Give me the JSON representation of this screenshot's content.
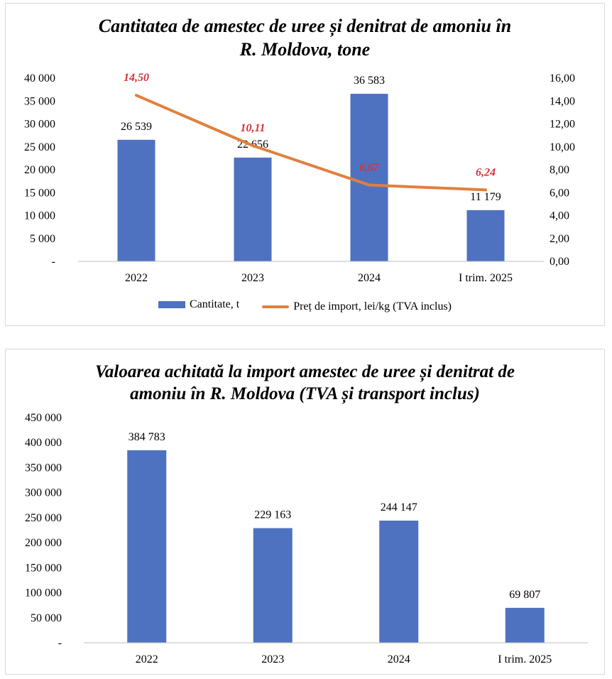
{
  "colors": {
    "bar": "#4e72c0",
    "line": "#e0803e",
    "line_label": "#d6343a",
    "axis": "#bfbfbf"
  },
  "chart_data": [
    {
      "type": "bar+line",
      "title": "Cantitatea de amestec de uree și denitrat de amoniu în R. Moldova, tone",
      "title_lines": [
        "Cantitatea de amestec de uree și denitrat de amoniu în",
        "R. Moldova, tone"
      ],
      "categories": [
        "2022",
        "2023",
        "2024",
        "I trim. 2025"
      ],
      "series": [
        {
          "name": "Cantitate, t",
          "type": "bar",
          "axis": "left",
          "values": [
            26539,
            22656,
            36583,
            11179
          ],
          "labels": [
            "26 539",
            "22 656",
            "36 583",
            "11 179"
          ]
        },
        {
          "name": "Preț de import, lei/kg (TVA inclus)",
          "type": "line",
          "axis": "right",
          "values": [
            14.5,
            10.11,
            6.67,
            6.24
          ],
          "labels": [
            "14,50",
            "10,11",
            "6,67",
            "6,24"
          ]
        }
      ],
      "ylim": [
        0,
        40000
      ],
      "y_ticks": [
        "-",
        "5 000",
        "10 000",
        "15 000",
        "20 000",
        "25 000",
        "30 000",
        "35 000",
        "40 000"
      ],
      "y2lim": [
        0,
        16
      ],
      "y2_ticks": [
        "0,00",
        "2,00",
        "4,00",
        "6,00",
        "8,00",
        "10,00",
        "12,00",
        "14,00",
        "16,00"
      ],
      "legend_position": "bottom",
      "grid": false
    },
    {
      "type": "bar",
      "title": "Valoarea achitată la import amestec de uree și denitrat de amoniu în R. Moldova (TVA și transport inclus)",
      "title_lines": [
        "Valoarea achitată la import amestec de uree și denitrat de",
        "amoniu în R. Moldova (TVA și transport inclus)"
      ],
      "categories": [
        "2022",
        "2023",
        "2024",
        "I trim. 2025"
      ],
      "values": [
        384783,
        229163,
        244147,
        69807
      ],
      "labels": [
        "384 783",
        "229 163",
        "244 147",
        "69 807"
      ],
      "ylim": [
        0,
        450000
      ],
      "y_ticks": [
        "-",
        "50 000",
        "100 000",
        "150 000",
        "200 000",
        "250 000",
        "300 000",
        "350 000",
        "400 000",
        "450 000"
      ],
      "grid": false
    }
  ]
}
